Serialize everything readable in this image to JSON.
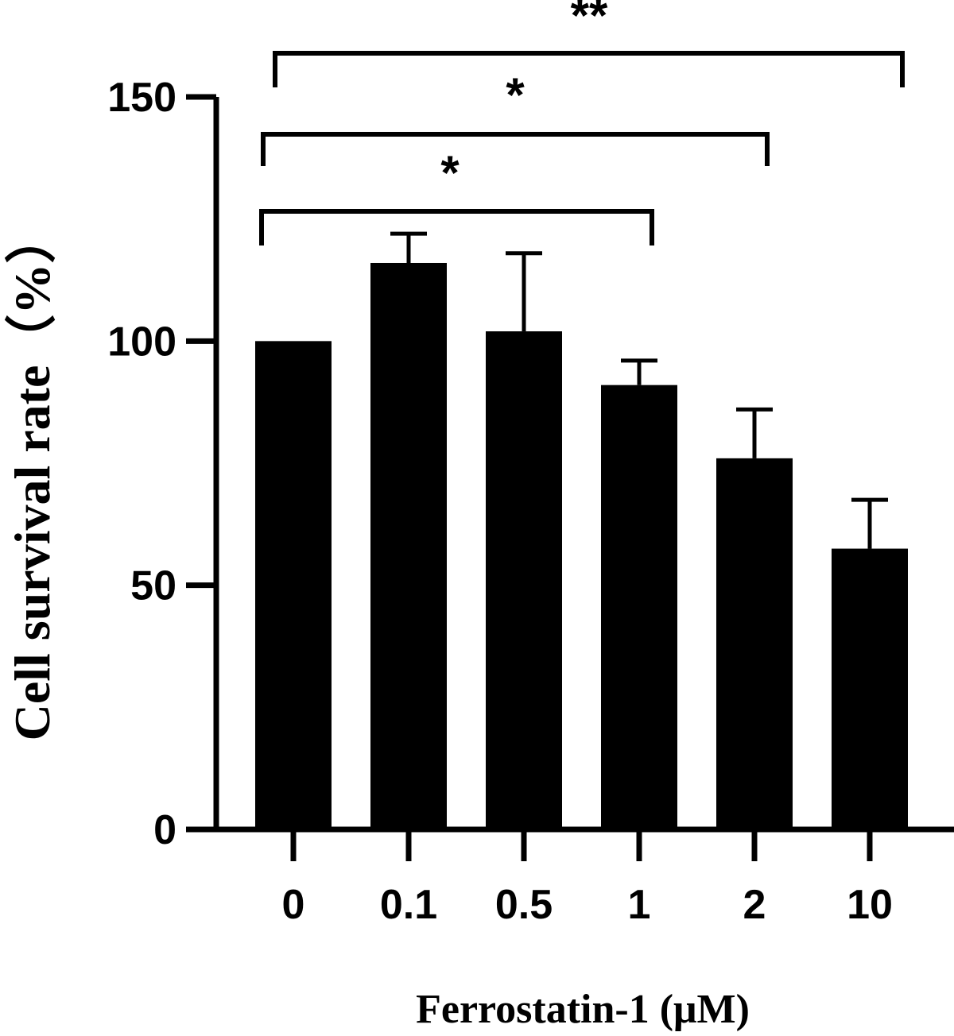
{
  "chart_data": {
    "type": "bar",
    "title": "",
    "xlabel": "Ferrostatin-1 (μM)",
    "ylabel": "Cell survival rate（%）",
    "categories": [
      "0",
      "0.1",
      "0.5",
      "1",
      "2",
      "10"
    ],
    "series": [
      {
        "values": [
          100,
          116,
          102,
          91,
          76,
          57.5
        ],
        "error": [
          0,
          6,
          16,
          5,
          10,
          10
        ]
      }
    ],
    "ylim": [
      0,
      150
    ],
    "yticks": [
      "0",
      "50",
      "100",
      "150"
    ],
    "colors": {
      "bar": "#000000",
      "axis": "#000000"
    },
    "grid": false,
    "legend": "none",
    "significance": [
      {
        "from": "0",
        "to": "1",
        "label": "*"
      },
      {
        "from": "0",
        "to": "2",
        "label": "*"
      },
      {
        "from": "0",
        "to": "10",
        "label": "**"
      }
    ]
  }
}
